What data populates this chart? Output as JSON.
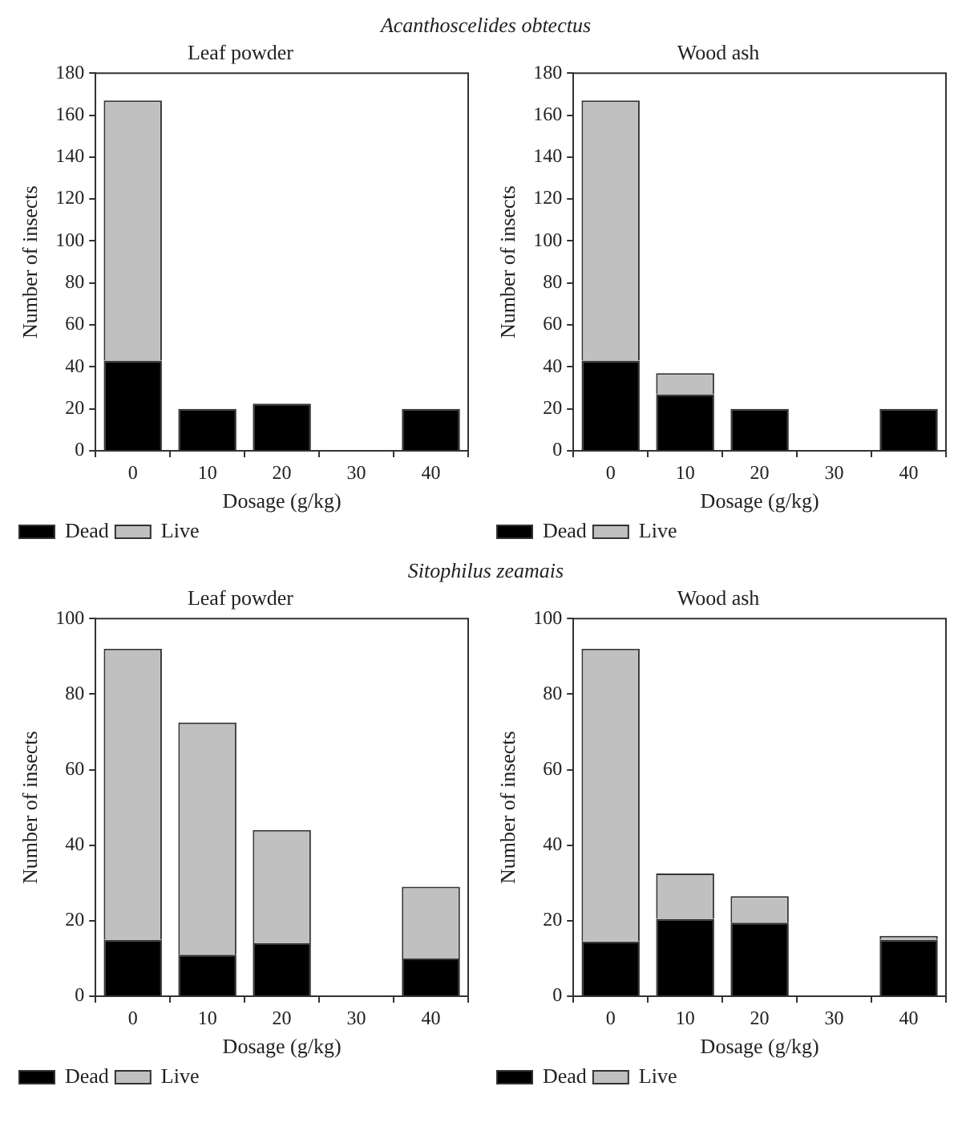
{
  "chart_data": [
    {
      "type": "bar",
      "stacked": true,
      "subtitle": "Acanthoscelides obtectus",
      "title": "Leaf powder",
      "xlabel": "Dosage (g/kg)",
      "ylabel": "Number of insects",
      "categories": [
        "0",
        "10",
        "20",
        "30",
        "40"
      ],
      "ylim": [
        0,
        180
      ],
      "yticks": [
        0,
        20,
        40,
        60,
        80,
        100,
        120,
        140,
        160,
        180
      ],
      "grid": false,
      "legend": "bottom left",
      "series": [
        {
          "name": "Dead",
          "color": "#000000",
          "values": [
            43,
            20,
            22.5,
            null,
            20
          ]
        },
        {
          "name": "Live",
          "color": "#c0c0c0",
          "values": [
            124,
            0,
            0,
            null,
            0
          ]
        }
      ]
    },
    {
      "type": "bar",
      "stacked": true,
      "title": "Wood ash",
      "xlabel": "Dosage (g/kg)",
      "ylabel": "Number of insects",
      "categories": [
        "0",
        "10",
        "20",
        "30",
        "40"
      ],
      "ylim": [
        0,
        180
      ],
      "yticks": [
        0,
        20,
        40,
        60,
        80,
        100,
        120,
        140,
        160,
        180
      ],
      "grid": false,
      "legend": "bottom left",
      "series": [
        {
          "name": "Dead",
          "color": "#000000",
          "values": [
            43,
            27,
            20,
            null,
            20
          ]
        },
        {
          "name": "Live",
          "color": "#c0c0c0",
          "values": [
            124,
            10,
            0,
            null,
            0
          ]
        }
      ]
    },
    {
      "type": "bar",
      "stacked": true,
      "subtitle": "Sitophilus zeamais",
      "title": "Leaf powder",
      "xlabel": "Dosage (g/kg)",
      "ylabel": "Number of insects",
      "categories": [
        "0",
        "10",
        "20",
        "30",
        "40"
      ],
      "ylim": [
        0,
        100
      ],
      "yticks": [
        0,
        20,
        40,
        60,
        80,
        100
      ],
      "grid": false,
      "legend": "bottom left",
      "series": [
        {
          "name": "Dead",
          "color": "#000000",
          "values": [
            15,
            11,
            14,
            null,
            10
          ]
        },
        {
          "name": "Live",
          "color": "#c0c0c0",
          "values": [
            77,
            61.5,
            30,
            null,
            19
          ]
        }
      ]
    },
    {
      "type": "bar",
      "stacked": true,
      "title": "Wood ash",
      "xlabel": "Dosage (g/kg)",
      "ylabel": "Number of insects",
      "categories": [
        "0",
        "10",
        "20",
        "30",
        "40"
      ],
      "ylim": [
        0,
        100
      ],
      "yticks": [
        0,
        20,
        40,
        60,
        80,
        100
      ],
      "grid": false,
      "legend": "bottom left",
      "series": [
        {
          "name": "Dead",
          "color": "#000000",
          "values": [
            14.5,
            20.5,
            19.5,
            null,
            15
          ]
        },
        {
          "name": "Live",
          "color": "#c0c0c0",
          "values": [
            77.5,
            12,
            7,
            null,
            1
          ]
        }
      ]
    }
  ]
}
